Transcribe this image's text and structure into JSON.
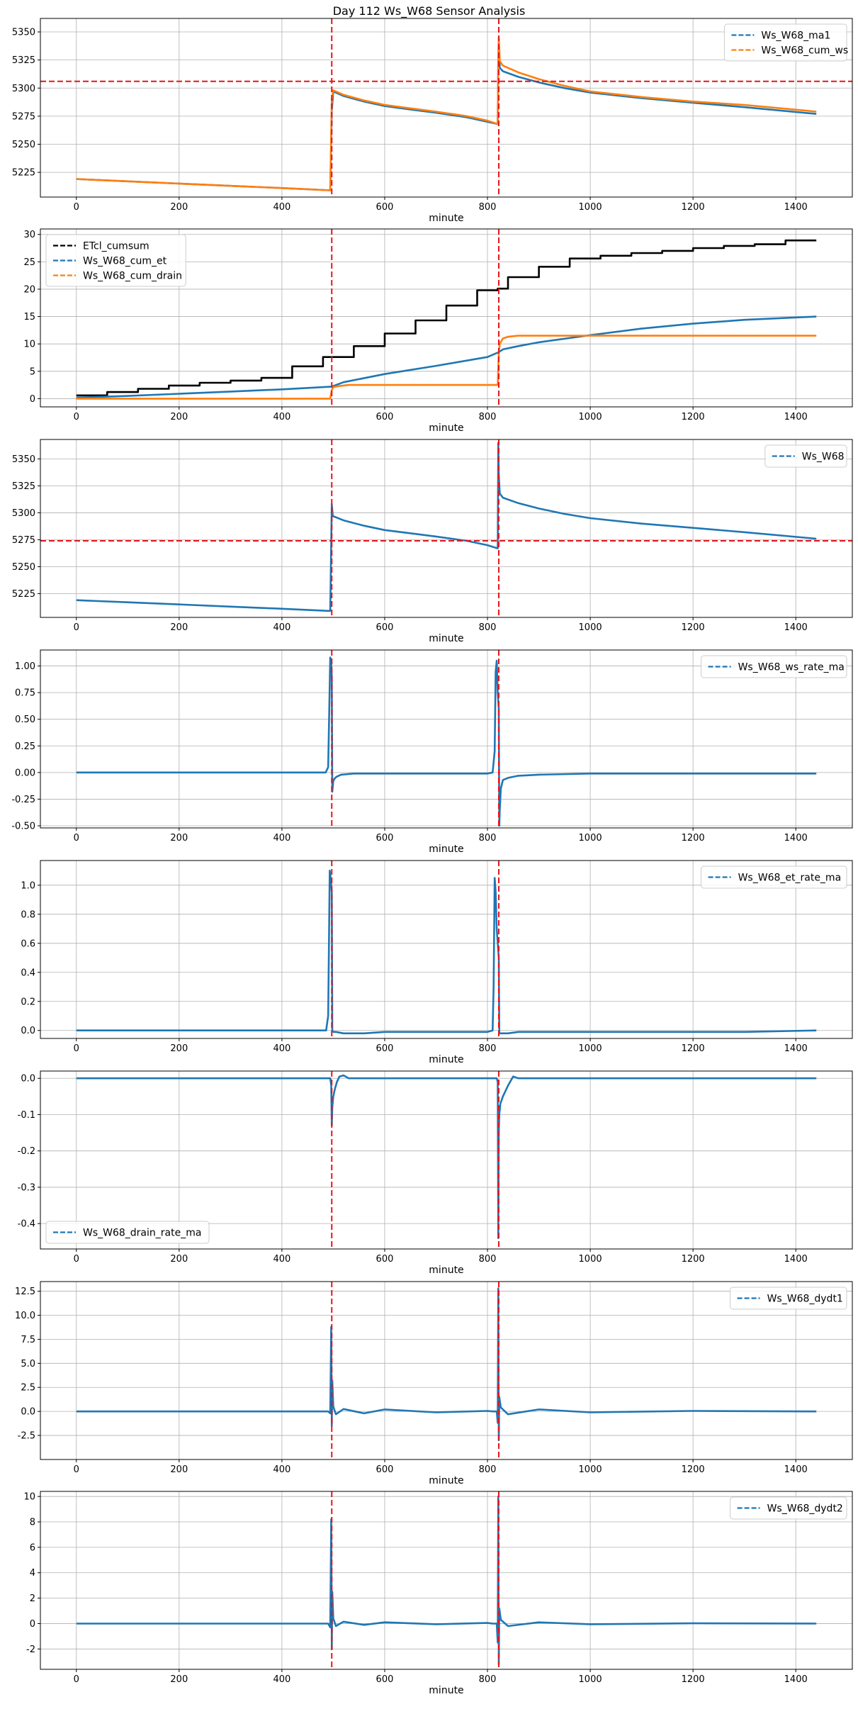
{
  "title": "Day 112 Ws_W68 Sensor Analysis",
  "colors": {
    "blue": "#1f77b4",
    "orange": "#ff7f0e",
    "black": "#000000",
    "red": "#e8141b",
    "grid": "#b0b0b0"
  },
  "vlines": [
    497,
    822
  ],
  "chart_data": [
    {
      "type": "line",
      "xlabel": "minute",
      "xlim": [
        -70,
        1510
      ],
      "ylim": [
        5203,
        5362
      ],
      "xticks": [
        0,
        200,
        400,
        600,
        800,
        1000,
        1200,
        1400
      ],
      "yticks": [
        5225,
        5250,
        5275,
        5300,
        5325,
        5350
      ],
      "hline": 5306,
      "legend": "top-right",
      "series": [
        {
          "name": "Ws_W68_ma1",
          "color": "blue",
          "x": [
            0,
            100,
            200,
            300,
            400,
            494,
            497,
            500,
            520,
            560,
            600,
            650,
            700,
            760,
            800,
            820,
            821,
            822,
            824,
            830,
            860,
            900,
            950,
            1000,
            1100,
            1200,
            1300,
            1440
          ],
          "y": [
            5219,
            5217,
            5215,
            5213,
            5211,
            5209,
            5280,
            5297,
            5293,
            5288,
            5284,
            5281,
            5278,
            5274,
            5270,
            5268,
            5325,
            5338,
            5318,
            5315,
            5310,
            5305,
            5300,
            5296,
            5291,
            5287,
            5283,
            5277
          ]
        },
        {
          "name": "Ws_W68_cum_ws",
          "color": "orange",
          "x": [
            0,
            100,
            200,
            300,
            400,
            494,
            497,
            500,
            520,
            560,
            600,
            650,
            700,
            760,
            800,
            820,
            821,
            822,
            824,
            830,
            860,
            900,
            950,
            1000,
            1100,
            1200,
            1300,
            1440
          ],
          "y": [
            5219,
            5217,
            5215,
            5213,
            5211,
            5209,
            5290,
            5298,
            5294,
            5289,
            5285,
            5282,
            5279,
            5275,
            5271,
            5268,
            5330,
            5345,
            5324,
            5320,
            5314,
            5308,
            5302,
            5297,
            5292,
            5288,
            5285,
            5279
          ]
        }
      ]
    },
    {
      "type": "line",
      "xlabel": "minute",
      "xlim": [
        -70,
        1510
      ],
      "ylim": [
        -1.5,
        31
      ],
      "xticks": [
        0,
        200,
        400,
        600,
        800,
        1000,
        1200,
        1400
      ],
      "yticks": [
        0,
        5,
        10,
        15,
        20,
        25,
        30
      ],
      "legend": "top-left",
      "series": [
        {
          "name": "ETcl_cumsum",
          "color": "black",
          "step": true,
          "x": [
            0,
            60,
            120,
            180,
            240,
            300,
            360,
            420,
            480,
            540,
            600,
            660,
            720,
            780,
            820,
            840,
            900,
            960,
            1020,
            1080,
            1140,
            1200,
            1260,
            1320,
            1380,
            1440
          ],
          "y": [
            0.6,
            1.2,
            1.8,
            2.4,
            2.9,
            3.3,
            3.8,
            5.9,
            7.6,
            9.6,
            11.9,
            14.3,
            17.0,
            19.8,
            20.1,
            22.2,
            24.1,
            25.6,
            26.1,
            26.6,
            27.0,
            27.5,
            27.9,
            28.2,
            28.9,
            28.9
          ]
        },
        {
          "name": "Ws_W68_cum_et",
          "color": "blue",
          "x": [
            0,
            100,
            200,
            300,
            400,
            497,
            520,
            600,
            700,
            800,
            822,
            830,
            860,
            900,
            1000,
            1100,
            1200,
            1300,
            1440
          ],
          "y": [
            0.2,
            0.5,
            0.9,
            1.3,
            1.7,
            2.2,
            3.0,
            4.5,
            6.0,
            7.6,
            8.5,
            9.0,
            9.6,
            10.3,
            11.6,
            12.8,
            13.7,
            14.4,
            15.0
          ]
        },
        {
          "name": "Ws_W68_cum_drain",
          "color": "orange",
          "x": [
            0,
            494,
            497,
            500,
            510,
            520,
            530,
            600,
            700,
            820,
            822,
            824,
            830,
            840,
            860,
            900,
            1000,
            1200,
            1440
          ],
          "y": [
            0,
            0,
            1.6,
            2.1,
            2.3,
            2.4,
            2.5,
            2.5,
            2.5,
            2.5,
            8.5,
            10.0,
            11.0,
            11.3,
            11.5,
            11.5,
            11.5,
            11.5,
            11.5
          ]
        }
      ]
    },
    {
      "type": "line",
      "xlabel": "minute",
      "xlim": [
        -70,
        1510
      ],
      "ylim": [
        5203,
        5368
      ],
      "xticks": [
        0,
        200,
        400,
        600,
        800,
        1000,
        1200,
        1400
      ],
      "yticks": [
        5225,
        5250,
        5275,
        5300,
        5325,
        5350
      ],
      "hline": 5274,
      "legend": "top-right",
      "series": [
        {
          "name": "Ws_W68",
          "color": "blue",
          "x": [
            0,
            100,
            200,
            300,
            400,
            494,
            497,
            499,
            520,
            560,
            600,
            650,
            700,
            760,
            800,
            820,
            821,
            822,
            824,
            830,
            860,
            900,
            950,
            1000,
            1100,
            1200,
            1300,
            1440
          ],
          "y": [
            5219,
            5217,
            5215,
            5213,
            5211,
            5209,
            5308,
            5297,
            5293,
            5288,
            5284,
            5281,
            5278,
            5274,
            5270,
            5267,
            5365,
            5335,
            5318,
            5314,
            5309,
            5304,
            5299,
            5295,
            5290,
            5286,
            5282,
            5276
          ]
        }
      ]
    },
    {
      "type": "line",
      "xlabel": "minute",
      "xlim": [
        -70,
        1510
      ],
      "ylim": [
        -0.52,
        1.15
      ],
      "xticks": [
        0,
        200,
        400,
        600,
        800,
        1000,
        1200,
        1400
      ],
      "yticks": [
        -0.5,
        -0.25,
        0.0,
        0.25,
        0.5,
        0.75,
        1.0
      ],
      "legend": "top-right",
      "series": [
        {
          "name": "Ws_W68_ws_rate_ma",
          "color": "blue",
          "x": [
            0,
            480,
            485,
            490,
            494,
            496,
            497,
            498,
            500,
            502,
            506,
            515,
            540,
            600,
            700,
            780,
            800,
            810,
            814,
            816,
            818,
            820,
            822,
            823,
            824,
            826,
            830,
            840,
            860,
            900,
            1000,
            1100,
            1200,
            1300,
            1440
          ],
          "y": [
            0,
            0,
            0,
            0.05,
            1.08,
            1.03,
            0.9,
            -0.18,
            -0.08,
            -0.06,
            -0.04,
            -0.02,
            -0.01,
            -0.01,
            -0.01,
            -0.01,
            -0.01,
            0,
            0.2,
            0.95,
            1.05,
            0.75,
            0.6,
            -0.5,
            -0.35,
            -0.15,
            -0.07,
            -0.05,
            -0.03,
            -0.02,
            -0.01,
            -0.01,
            -0.01,
            -0.01,
            -0.01
          ]
        }
      ]
    },
    {
      "type": "line",
      "xlabel": "minute",
      "xlim": [
        -70,
        1510
      ],
      "ylim": [
        -0.055,
        1.17
      ],
      "xticks": [
        0,
        200,
        400,
        600,
        800,
        1000,
        1200,
        1400
      ],
      "yticks": [
        0.0,
        0.2,
        0.4,
        0.6,
        0.8,
        1.0
      ],
      "legend": "top-right",
      "series": [
        {
          "name": "Ws_W68_et_rate_ma",
          "color": "blue",
          "x": [
            0,
            480,
            486,
            490,
            493,
            495,
            497,
            498,
            500,
            505,
            520,
            560,
            600,
            700,
            800,
            810,
            812,
            814,
            816,
            818,
            820,
            822,
            823,
            826,
            840,
            860,
            900,
            1000,
            1100,
            1200,
            1300,
            1440
          ],
          "y": [
            0,
            0,
            0,
            0.1,
            1.1,
            1.05,
            0.95,
            0,
            -0.01,
            -0.01,
            -0.02,
            -0.02,
            -0.01,
            -0.01,
            -0.01,
            0,
            0.3,
            1.05,
            0.95,
            0.7,
            0.6,
            0.5,
            -0.02,
            -0.02,
            -0.02,
            -0.01,
            -0.01,
            -0.01,
            -0.01,
            -0.01,
            -0.01,
            0
          ]
        }
      ]
    },
    {
      "type": "line",
      "xlabel": "minute",
      "xlim": [
        -70,
        1510
      ],
      "ylim": [
        -0.47,
        0.02
      ],
      "xticks": [
        0,
        200,
        400,
        600,
        800,
        1000,
        1200,
        1400
      ],
      "yticks": [
        0.0,
        -0.1,
        -0.2,
        -0.3,
        -0.4
      ],
      "legend": "bottom-left",
      "series": [
        {
          "name": "Ws_W68_drain_rate_ma",
          "color": "blue",
          "x": [
            0,
            494,
            496,
            497,
            498,
            500,
            503,
            507,
            512,
            520,
            530,
            600,
            800,
            818,
            820,
            821,
            822,
            823,
            825,
            830,
            840,
            850,
            860,
            1000,
            1200,
            1440
          ],
          "y": [
            0,
            0,
            -0.02,
            -0.13,
            -0.08,
            -0.05,
            -0.03,
            -0.01,
            0.005,
            0.008,
            0,
            0,
            0,
            0,
            -0.01,
            -0.44,
            -0.15,
            -0.1,
            -0.07,
            -0.05,
            -0.02,
            0.005,
            0,
            0,
            0,
            0
          ]
        }
      ]
    },
    {
      "type": "line",
      "xlabel": "minute",
      "xlim": [
        -70,
        1510
      ],
      "ylim": [
        -5.0,
        13.5
      ],
      "xticks": [
        0,
        200,
        400,
        600,
        800,
        1000,
        1200,
        1400
      ],
      "yticks": [
        -2.5,
        0.0,
        2.5,
        5.0,
        7.5,
        10.0,
        12.5
      ],
      "legend": "top-right",
      "series": [
        {
          "name": "Ws_W68_dydt1",
          "color": "blue",
          "x": [
            0,
            480,
            490,
            494,
            496,
            497,
            498,
            500,
            505,
            520,
            560,
            600,
            700,
            800,
            810,
            818,
            820,
            821,
            822,
            823,
            826,
            840,
            900,
            1000,
            1200,
            1440
          ],
          "y": [
            0,
            0,
            0,
            -0.2,
            8.8,
            -1.5,
            3.2,
            0.5,
            -0.3,
            0.25,
            -0.2,
            0.2,
            -0.1,
            0.05,
            0,
            0,
            -1.2,
            12.8,
            -3.0,
            1.5,
            0.4,
            -0.3,
            0.2,
            -0.1,
            0.05,
            0
          ]
        }
      ]
    },
    {
      "type": "line",
      "xlabel": "minute",
      "xlim": [
        -70,
        1510
      ],
      "ylim": [
        -3.6,
        10.4
      ],
      "xticks": [
        0,
        200,
        400,
        600,
        800,
        1000,
        1200,
        1400
      ],
      "yticks": [
        -2,
        0,
        2,
        4,
        6,
        8,
        10
      ],
      "legend": "top-right",
      "series": [
        {
          "name": "Ws_W68_dydt2",
          "color": "blue",
          "x": [
            0,
            480,
            490,
            494,
            496,
            497,
            498,
            500,
            505,
            520,
            560,
            600,
            700,
            800,
            810,
            818,
            820,
            821,
            822,
            823,
            826,
            840,
            900,
            1000,
            1200,
            1440
          ],
          "y": [
            0,
            0,
            0,
            -0.3,
            8.2,
            -2.0,
            2.5,
            0.4,
            -0.2,
            0.15,
            -0.1,
            0.1,
            -0.05,
            0.05,
            0,
            0,
            -1.5,
            10.0,
            -3.2,
            1.2,
            0.3,
            -0.2,
            0.1,
            -0.05,
            0.02,
            0
          ]
        }
      ]
    }
  ]
}
